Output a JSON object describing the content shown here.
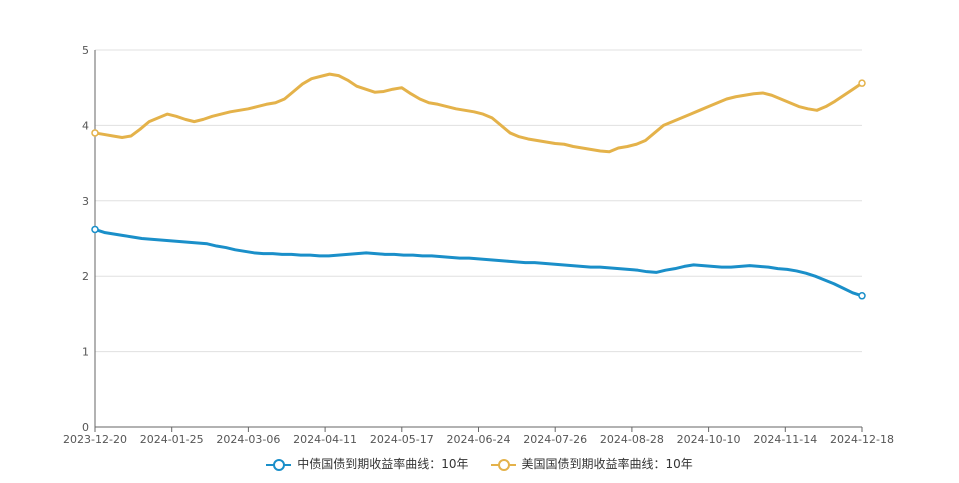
{
  "chart_data": {
    "type": "line",
    "ylim": [
      0,
      5
    ],
    "yticks": [
      "0",
      "1",
      "2",
      "3",
      "4",
      "5"
    ],
    "xticks": [
      "2023-12-20",
      "2024-01-25",
      "2024-03-06",
      "2024-04-11",
      "2024-05-17",
      "2024-06-24",
      "2024-07-26",
      "2024-08-28",
      "2024-10-10",
      "2024-11-14",
      "2024-12-18"
    ],
    "grid": true,
    "legend_position": "bottom-center",
    "series": [
      {
        "name": "中债国债到期收益率曲线：10年",
        "color": "#1a8fc9",
        "values": [
          2.62,
          2.58,
          2.56,
          2.54,
          2.52,
          2.5,
          2.49,
          2.48,
          2.47,
          2.46,
          2.45,
          2.44,
          2.43,
          2.4,
          2.38,
          2.35,
          2.33,
          2.31,
          2.3,
          2.3,
          2.29,
          2.29,
          2.28,
          2.28,
          2.27,
          2.27,
          2.28,
          2.29,
          2.3,
          2.31,
          2.3,
          2.29,
          2.29,
          2.28,
          2.28,
          2.27,
          2.27,
          2.26,
          2.25,
          2.24,
          2.24,
          2.23,
          2.22,
          2.21,
          2.2,
          2.19,
          2.18,
          2.18,
          2.17,
          2.16,
          2.15,
          2.14,
          2.13,
          2.12,
          2.12,
          2.11,
          2.1,
          2.09,
          2.08,
          2.06,
          2.05,
          2.08,
          2.1,
          2.13,
          2.15,
          2.14,
          2.13,
          2.12,
          2.12,
          2.13,
          2.14,
          2.13,
          2.12,
          2.1,
          2.09,
          2.07,
          2.04,
          2.0,
          1.95,
          1.9,
          1.84,
          1.78,
          1.74
        ]
      },
      {
        "name": "美国国债到期收益率曲线：10年",
        "color": "#e4b24a",
        "values": [
          3.9,
          3.88,
          3.86,
          3.84,
          3.86,
          3.95,
          4.05,
          4.1,
          4.15,
          4.12,
          4.08,
          4.05,
          4.08,
          4.12,
          4.15,
          4.18,
          4.2,
          4.22,
          4.25,
          4.28,
          4.3,
          4.35,
          4.45,
          4.55,
          4.62,
          4.65,
          4.68,
          4.66,
          4.6,
          4.52,
          4.48,
          4.44,
          4.45,
          4.48,
          4.5,
          4.42,
          4.35,
          4.3,
          4.28,
          4.25,
          4.22,
          4.2,
          4.18,
          4.15,
          4.1,
          4.0,
          3.9,
          3.85,
          3.82,
          3.8,
          3.78,
          3.76,
          3.75,
          3.72,
          3.7,
          3.68,
          3.66,
          3.65,
          3.7,
          3.72,
          3.75,
          3.8,
          3.9,
          4.0,
          4.05,
          4.1,
          4.15,
          4.2,
          4.25,
          4.3,
          4.35,
          4.38,
          4.4,
          4.42,
          4.43,
          4.4,
          4.35,
          4.3,
          4.25,
          4.22,
          4.2,
          4.25,
          4.32,
          4.4,
          4.48,
          4.56
        ]
      }
    ]
  }
}
